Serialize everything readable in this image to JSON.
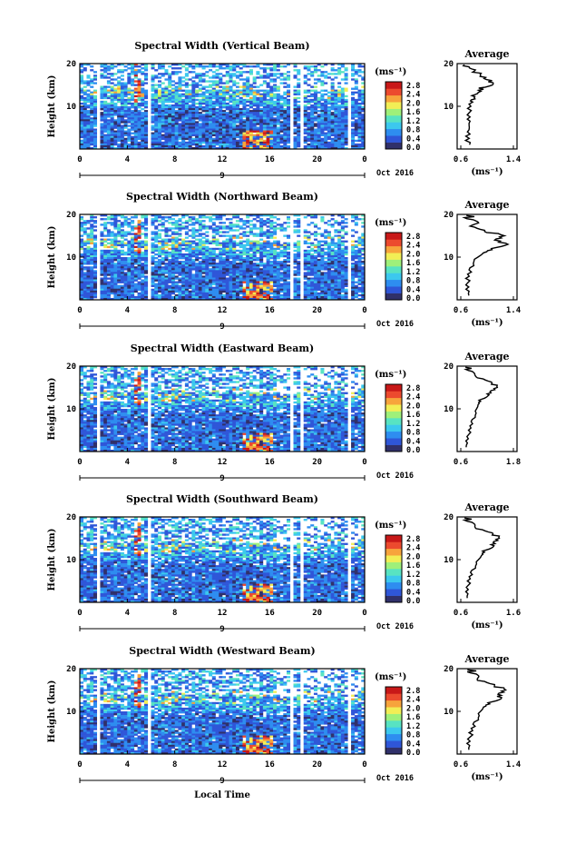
{
  "chart_data": [
    {
      "type": "heatmap",
      "title": "Spectral Width (Vertical Beam)",
      "ylabel": "Height (km)",
      "y_ticks": [
        "10",
        "20"
      ],
      "x_ticks": [
        "0",
        "4",
        "8",
        "12",
        "16",
        "20",
        "0"
      ],
      "date_marker": "9",
      "date_label": "Oct 2016",
      "colorbar_unit": "(ms⁻¹)",
      "colorbar_ticks": [
        "0.0",
        "0.4",
        "0.8",
        "1.2",
        "1.6",
        "2.0",
        "2.4",
        "2.8"
      ],
      "profile_title": "Average",
      "profile_x_ticks": [
        "0.6",
        "1.4"
      ],
      "profile_xlim": [
        0.6,
        1.4
      ],
      "profile_y_ticks": [
        "10",
        "20"
      ],
      "profile_xlabel": "(ms⁻¹)",
      "profile": {
        "height_km": [
          1,
          3,
          5,
          7,
          9,
          11,
          12,
          13,
          14,
          15,
          16,
          17,
          18,
          19,
          20
        ],
        "width_ms": [
          0.72,
          0.7,
          0.7,
          0.72,
          0.72,
          0.75,
          0.8,
          0.86,
          0.92,
          1.02,
          1.05,
          0.95,
          0.82,
          0.72,
          0.7
        ]
      }
    },
    {
      "type": "heatmap",
      "title": "Spectral Width (Northward Beam)",
      "ylabel": "Height (km)",
      "y_ticks": [
        "10",
        "20"
      ],
      "x_ticks": [
        "0",
        "4",
        "8",
        "12",
        "16",
        "20",
        "0"
      ],
      "date_marker": "9",
      "date_label": "Oct 2016",
      "colorbar_unit": "(ms⁻¹)",
      "colorbar_ticks": [
        "0.0",
        "0.4",
        "0.8",
        "1.2",
        "1.6",
        "2.0",
        "2.4",
        "2.8"
      ],
      "profile_title": "Average",
      "profile_x_ticks": [
        "0.6",
        "1.4"
      ],
      "profile_xlim": [
        0.6,
        1.4
      ],
      "profile_y_ticks": [
        "10",
        "20"
      ],
      "profile_xlabel": "(ms⁻¹)",
      "profile": {
        "height_km": [
          1,
          3,
          5,
          7,
          9,
          11,
          12,
          13,
          14,
          15,
          16,
          17,
          18,
          19,
          20
        ],
        "width_ms": [
          0.7,
          0.7,
          0.7,
          0.74,
          0.8,
          0.95,
          1.1,
          1.25,
          1.15,
          1.28,
          0.95,
          0.8,
          0.85,
          0.72,
          0.75
        ]
      }
    },
    {
      "type": "heatmap",
      "title": "Spectral Width (Eastward Beam)",
      "ylabel": "Height (km)",
      "y_ticks": [
        "10",
        "20"
      ],
      "x_ticks": [
        "0",
        "4",
        "8",
        "12",
        "16",
        "20",
        "0"
      ],
      "date_marker": "9",
      "date_label": "Oct 2016",
      "colorbar_unit": "(ms⁻¹)",
      "colorbar_ticks": [
        "0.0",
        "0.4",
        "0.8",
        "1.2",
        "1.6",
        "2.0",
        "2.4",
        "2.8"
      ],
      "profile_title": "Average",
      "profile_x_ticks": [
        "0.6",
        "1.8"
      ],
      "profile_xlim": [
        0.6,
        1.8
      ],
      "profile_y_ticks": [
        "10",
        "20"
      ],
      "profile_xlabel": "",
      "profile": {
        "height_km": [
          1,
          3,
          5,
          7,
          9,
          11,
          12,
          13,
          14,
          15,
          16,
          17,
          18,
          19,
          20
        ],
        "width_ms": [
          0.7,
          0.75,
          0.8,
          0.85,
          0.95,
          1.0,
          1.05,
          1.15,
          1.3,
          1.45,
          1.3,
          1.1,
          0.9,
          0.8,
          0.75
        ]
      }
    },
    {
      "type": "heatmap",
      "title": "Spectral Width (Southward Beam)",
      "ylabel": "Height (km)",
      "y_ticks": [
        "10",
        "20"
      ],
      "x_ticks": [
        "0",
        "4",
        "8",
        "12",
        "16",
        "20",
        "0"
      ],
      "date_marker": "9",
      "date_label": "Oct 2016",
      "colorbar_unit": "(ms⁻¹)",
      "colorbar_ticks": [
        "0.0",
        "0.4",
        "0.8",
        "1.2",
        "1.6",
        "2.0",
        "2.4",
        "2.8"
      ],
      "profile_title": "Average",
      "profile_x_ticks": [
        "0.6",
        "1.6"
      ],
      "profile_xlim": [
        0.6,
        1.6
      ],
      "profile_y_ticks": [
        "10",
        "20"
      ],
      "profile_xlabel": "(ms⁻¹)",
      "profile": {
        "height_km": [
          1,
          3,
          5,
          7,
          9,
          11,
          12,
          13,
          14,
          15,
          16,
          17,
          18,
          19,
          20
        ],
        "width_ms": [
          0.7,
          0.72,
          0.75,
          0.8,
          0.9,
          1.0,
          1.05,
          1.15,
          1.25,
          1.35,
          1.2,
          1.0,
          0.85,
          0.75,
          0.72
        ]
      }
    },
    {
      "type": "heatmap",
      "title": "Spectral Width (Westward Beam)",
      "ylabel": "Height (km)",
      "y_ticks": [
        "10",
        "20"
      ],
      "x_ticks": [
        "0",
        "4",
        "8",
        "12",
        "16",
        "20",
        "0"
      ],
      "date_marker": "9",
      "date_label": "Oct 2016",
      "colorbar_unit": "(ms⁻¹)",
      "colorbar_ticks": [
        "0.0",
        "0.4",
        "0.8",
        "1.2",
        "1.6",
        "2.0",
        "2.4",
        "2.8"
      ],
      "profile_title": "Average",
      "profile_x_ticks": [
        "0.6",
        "1.4"
      ],
      "profile_xlim": [
        0.6,
        1.4
      ],
      "profile_y_ticks": [
        "10",
        "20"
      ],
      "profile_xlabel": "(ms⁻¹)",
      "profile": {
        "height_km": [
          1,
          3,
          5,
          7,
          9,
          11,
          12,
          13,
          14,
          15,
          16,
          17,
          18,
          19,
          20
        ],
        "width_ms": [
          0.7,
          0.72,
          0.75,
          0.8,
          0.88,
          0.95,
          1.05,
          1.15,
          1.2,
          1.3,
          1.1,
          0.95,
          0.85,
          0.78,
          0.75
        ]
      }
    }
  ],
  "xlabel": "Local Time",
  "colors": {
    "scale": [
      "#30306a",
      "#2f56d8",
      "#2e8df0",
      "#3cc8ee",
      "#58e3c2",
      "#9ff07a",
      "#f2ee55",
      "#f7a43c",
      "#ec4a2e",
      "#c81818"
    ]
  }
}
